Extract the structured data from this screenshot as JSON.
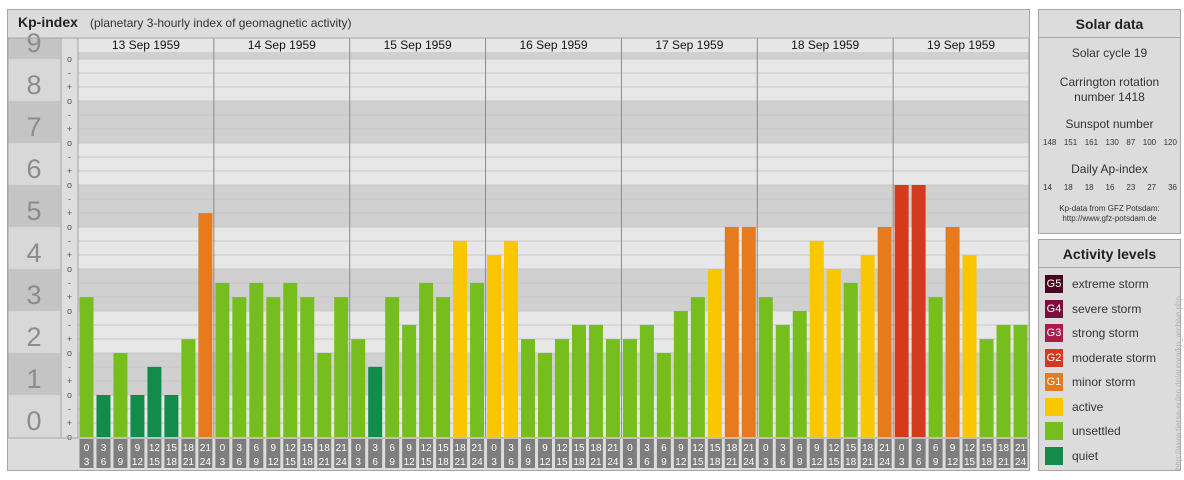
{
  "title": {
    "main": "Kp-index",
    "subtitle": "(planetary 3-hourly index of geomagnetic activity)"
  },
  "colors": {
    "quiet": "#128B4B",
    "unsettled": "#76BD1E",
    "active": "#FAC600",
    "minor_storm": "#E77A1D",
    "moderate_storm": "#D63A1E",
    "strong_storm": "#AA1B4B",
    "severe_storm": "#7C0C3D",
    "extreme_storm": "#4A0620"
  },
  "chart_data": {
    "type": "bar",
    "y_axis_labels": [
      "0",
      "1",
      "2",
      "3",
      "4",
      "5",
      "6",
      "7",
      "8",
      "9"
    ],
    "minor_tick_labels": [
      "o",
      "+",
      "-",
      "o",
      "+",
      "-",
      "o",
      "+",
      "-",
      "o",
      "+",
      "-",
      "o",
      "+",
      "-",
      "o",
      "+",
      "-",
      "o",
      "+",
      "-",
      "o",
      "+",
      "-",
      "o",
      "+",
      "-",
      "o"
    ],
    "ylim": [
      0,
      9.33
    ],
    "days": [
      {
        "label": "13 Sep 1959",
        "values": [
          3.33,
          1.0,
          2.0,
          1.0,
          1.67,
          1.0,
          2.33,
          5.33
        ]
      },
      {
        "label": "14 Sep 1959",
        "values": [
          3.67,
          3.33,
          3.67,
          3.33,
          3.67,
          3.33,
          2.0,
          3.33
        ]
      },
      {
        "label": "15 Sep 1959",
        "values": [
          2.33,
          1.67,
          3.33,
          2.67,
          3.67,
          3.33,
          4.67,
          3.67
        ]
      },
      {
        "label": "16 Sep 1959",
        "values": [
          4.33,
          4.67,
          2.33,
          2.0,
          2.33,
          2.67,
          2.67,
          2.33
        ]
      },
      {
        "label": "17 Sep 1959",
        "values": [
          2.33,
          2.67,
          2.0,
          3.0,
          3.33,
          4.0,
          5.0,
          5.0
        ]
      },
      {
        "label": "18 Sep 1959",
        "values": [
          3.33,
          2.67,
          3.0,
          4.67,
          4.0,
          3.67,
          4.33,
          5.0
        ]
      },
      {
        "label": "19 Sep 1959",
        "values": [
          6.0,
          6.0,
          3.33,
          5.0,
          4.33,
          2.33,
          2.67,
          2.67
        ]
      }
    ],
    "interval_labels": [
      [
        "0",
        "3"
      ],
      [
        "3",
        "6"
      ],
      [
        "6",
        "9"
      ],
      [
        "9",
        "12"
      ],
      [
        "12",
        "15"
      ],
      [
        "15",
        "18"
      ],
      [
        "18",
        "21"
      ],
      [
        "21",
        "24"
      ]
    ]
  },
  "solar_data": {
    "header": "Solar data",
    "cycle": "Solar cycle 19",
    "carrington_line1": "Carrington rotation",
    "carrington_line2": "number 1418",
    "sunspot_label": "Sunspot number",
    "sunspot_values": [
      "148",
      "151",
      "161",
      "130",
      "87",
      "100",
      "120"
    ],
    "ap_label": "Daily Ap-index",
    "ap_values": [
      "14",
      "18",
      "18",
      "16",
      "23",
      "27",
      "36"
    ],
    "source_line1": "Kp-data from GFZ Potsdam:",
    "source_line2": "http://www.gfz-potsdam.de"
  },
  "activity_levels": {
    "header": "Activity levels",
    "items": [
      {
        "code": "G5",
        "label": "extreme storm",
        "color": "#4A0620"
      },
      {
        "code": "G4",
        "label": "severe storm",
        "color": "#7C0C3D"
      },
      {
        "code": "G3",
        "label": "strong storm",
        "color": "#AA1B4B"
      },
      {
        "code": "G2",
        "label": "moderate storm",
        "color": "#D63A1E"
      },
      {
        "code": "G1",
        "label": "minor storm",
        "color": "#E77A1D"
      },
      {
        "code": "",
        "label": "active",
        "color": "#FAC600"
      },
      {
        "code": "",
        "label": "unsettled",
        "color": "#76BD1E"
      },
      {
        "code": "",
        "label": "quiet",
        "color": "#128B4B"
      }
    ]
  },
  "watermark": "http://www.tierse-eulen.de/aurora/kp_archive.php"
}
